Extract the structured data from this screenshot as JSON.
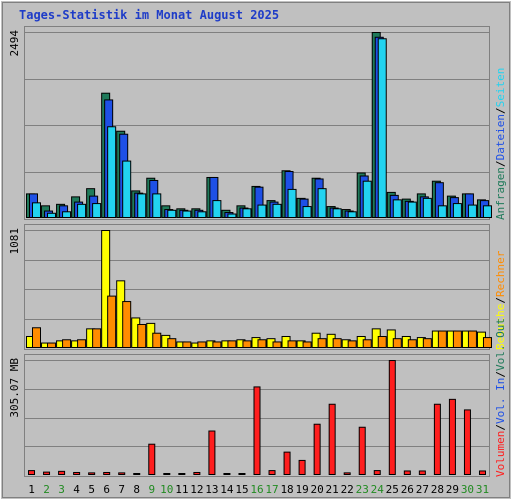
{
  "chart_data": {
    "type": "bar",
    "title": "Tages-Statistik im Monat August 2025",
    "categories": [
      "1",
      "2",
      "3",
      "4",
      "5",
      "6",
      "7",
      "8",
      "9",
      "10",
      "11",
      "12",
      "13",
      "14",
      "15",
      "16",
      "17",
      "18",
      "19",
      "20",
      "21",
      "22",
      "23",
      "24",
      "25",
      "26",
      "27",
      "28",
      "29",
      "30",
      "31"
    ],
    "weekend_days": [
      "2",
      "3",
      "9",
      "10",
      "16",
      "17",
      "23",
      "24",
      "30",
      "31"
    ],
    "panels": [
      {
        "id": "top",
        "ytick": "2494",
        "ymax": 2494,
        "series": [
          {
            "name": "Anfragen",
            "color": "#1f7a5a",
            "values": [
              330,
              170,
              190,
              290,
              400,
              1680,
              1170,
              370,
              540,
              170,
              130,
              130,
              550,
              110,
              170,
              430,
              240,
              640,
              270,
              540,
              160,
              120,
              610,
              2494,
              350,
              260,
              330,
              500,
              300,
              330,
              250
            ]
          },
          {
            "name": "Dateien",
            "color": "#1e50e6",
            "values": [
              330,
              100,
              170,
              220,
              300,
              1590,
              1130,
              340,
              510,
              120,
              110,
              110,
              550,
              80,
              140,
              420,
              220,
              630,
              260,
              530,
              140,
              100,
              570,
              2430,
              310,
              230,
              290,
              480,
              280,
              330,
              240
            ]
          },
          {
            "name": "Seiten",
            "color": "#22d3f0",
            "values": [
              210,
              70,
              90,
              190,
              200,
              1230,
              770,
              330,
              330,
              110,
              100,
              90,
              240,
              60,
              130,
              180,
              190,
              390,
              160,
              400,
              130,
              90,
              500,
              2410,
              250,
              220,
              270,
              170,
              200,
              180,
              170
            ]
          }
        ],
        "legend": [
          "Anfragen",
          "Dateien",
          "Seiten"
        ]
      },
      {
        "id": "middle",
        "ytick": "1081",
        "ymax": 1081,
        "series": [
          {
            "name": "Besuche",
            "color": "#ffff00",
            "values": [
              110,
              50,
              70,
              70,
              180,
              1081,
              620,
              280,
              230,
              120,
              60,
              50,
              70,
              70,
              80,
              100,
              90,
              110,
              70,
              140,
              130,
              80,
              110,
              180,
              170,
              110,
              100,
              160,
              160,
              160,
              150
            ]
          },
          {
            "name": "Rechner",
            "color": "#ff8c00",
            "values": [
              190,
              50,
              80,
              80,
              180,
              480,
              430,
              220,
              140,
              90,
              60,
              60,
              60,
              70,
              70,
              80,
              60,
              70,
              60,
              90,
              90,
              70,
              80,
              110,
              90,
              80,
              90,
              160,
              160,
              160,
              100
            ]
          }
        ],
        "legend": [
          "Besuche",
          "Rechner"
        ]
      },
      {
        "id": "bottom",
        "ytick": "305.07 MB",
        "ymax": 305.07,
        "series": [
          {
            "name": "Volumen",
            "color": "#ff1e1e",
            "values": [
              13,
              9,
              11,
              8,
              7,
              8,
              7,
              5,
              83,
              5,
              5,
              8,
              118,
              4,
              4,
              235,
              13,
              62,
              40,
              136,
              189,
              7,
              128,
              13,
              305,
              12,
              12,
              189,
              202,
              174,
              12
            ]
          }
        ],
        "legend": [
          "Volumen",
          "Vol. In",
          "Vol. Out"
        ]
      }
    ]
  },
  "legend_colors": {
    "Anfragen": "#1f7a5a",
    "Dateien": "#1e50e6",
    "Seiten": "#22d3f0",
    "Besuche": "#ffff00",
    "Rechner": "#ff8c00",
    "Volumen": "#ff1e1e",
    "Vol. In": "#1e50e6",
    "Vol. Out": "#1f7a5a"
  },
  "separator": "/"
}
